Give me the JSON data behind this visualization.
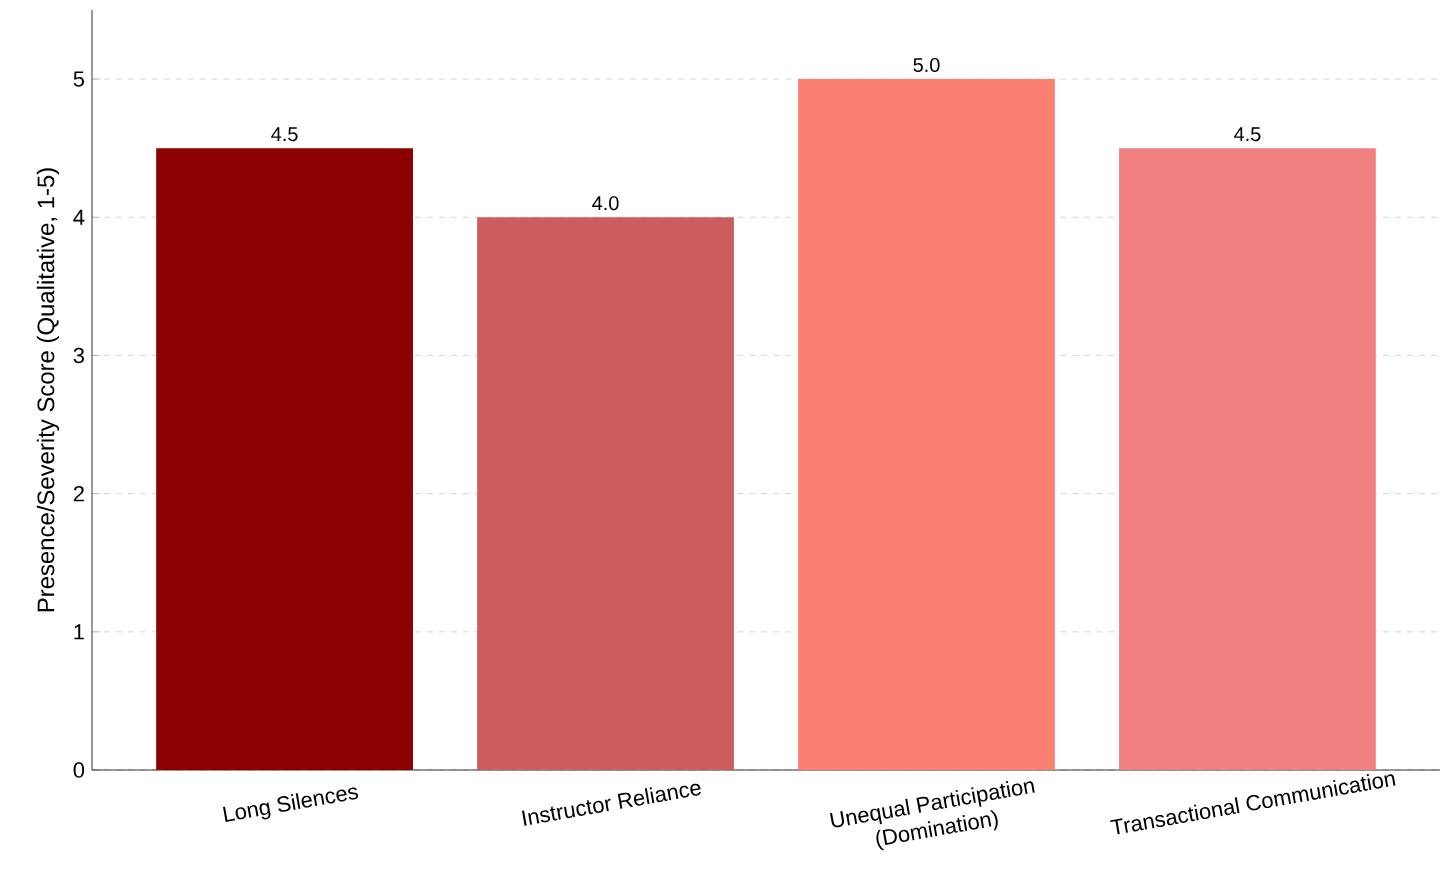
{
  "chart_data": {
    "type": "bar",
    "ylabel": "Presence/Severity Score (Qualitative, 1-5)",
    "categories": [
      "Long Silences",
      "Instructor Reliance",
      "Unequal Participation\n(Domination)",
      "Transactional Communication"
    ],
    "values": [
      4.5,
      4.0,
      5.0,
      4.5
    ],
    "colors": [
      "#8b0000",
      "#cd5c5c",
      "#fa8072",
      "#f08080"
    ],
    "value_labels": [
      "4.5",
      "4.0",
      "5.0",
      "4.5"
    ],
    "ylim": [
      0,
      5.5
    ],
    "yticks": [
      0,
      1,
      2,
      3,
      4,
      5
    ],
    "grid": "y"
  }
}
